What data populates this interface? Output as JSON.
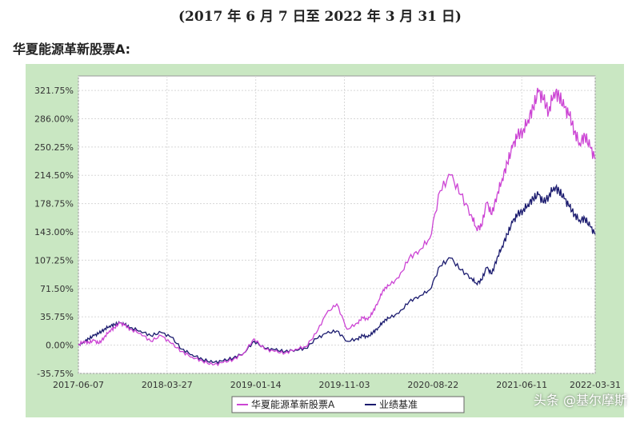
{
  "header": {
    "period": "(2017 年 6 月 7 日至 2022 年 3 月 31 日)",
    "fund_label": "华夏能源革新股票A:"
  },
  "watermark": "头条 @基尔摩斯",
  "chart_data": {
    "type": "line",
    "ylim": [
      -35.75,
      340
    ],
    "yticks": [
      "321.75%",
      "286.00%",
      "250.25%",
      "214.50%",
      "178.75%",
      "143.00%",
      "107.25%",
      "71.50%",
      "35.75%",
      "0.00%",
      "-35.75%"
    ],
    "ytick_values": [
      321.75,
      286.0,
      250.25,
      214.5,
      178.75,
      143.0,
      107.25,
      71.5,
      35.75,
      0.0,
      -35.75
    ],
    "xticks": [
      "2017-06-07",
      "2018-03-27",
      "2019-01-14",
      "2019-11-03",
      "2020-08-22",
      "2021-06-11",
      "2022-03-31"
    ],
    "xtick_positions": [
      0,
      0.1715,
      0.3432,
      0.5147,
      0.6863,
      0.8579,
      1.0
    ],
    "grid": true,
    "legend": "bottom-center",
    "series": [
      {
        "name": "华夏能源革新股票A",
        "color": "#cc44d4",
        "x": [
          0,
          0.01,
          0.02,
          0.03,
          0.04,
          0.05,
          0.06,
          0.07,
          0.08,
          0.09,
          0.1,
          0.12,
          0.14,
          0.16,
          0.18,
          0.2,
          0.22,
          0.24,
          0.26,
          0.28,
          0.3,
          0.32,
          0.34,
          0.36,
          0.38,
          0.4,
          0.42,
          0.44,
          0.46,
          0.48,
          0.5,
          0.52,
          0.54,
          0.55,
          0.56,
          0.57,
          0.58,
          0.59,
          0.6,
          0.62,
          0.64,
          0.66,
          0.68,
          0.7,
          0.72,
          0.74,
          0.76,
          0.77,
          0.78,
          0.79,
          0.8,
          0.81,
          0.82,
          0.83,
          0.84,
          0.85,
          0.86,
          0.87,
          0.88,
          0.89,
          0.9,
          0.91,
          0.92,
          0.93,
          0.94,
          0.95,
          0.96,
          0.97,
          0.98,
          0.99,
          1.0
        ],
        "values": [
          0,
          5,
          3,
          6,
          2,
          10,
          18,
          22,
          28,
          25,
          20,
          15,
          5,
          12,
          2,
          -8,
          -15,
          -20,
          -25,
          -22,
          -18,
          -10,
          8,
          -5,
          -8,
          -10,
          -5,
          -2,
          15,
          40,
          52,
          20,
          28,
          35,
          32,
          42,
          55,
          70,
          75,
          85,
          110,
          120,
          135,
          195,
          215,
          190,
          165,
          148,
          150,
          180,
          165,
          190,
          210,
          230,
          250,
          265,
          270,
          285,
          300,
          320,
          310,
          295,
          320,
          315,
          300,
          290,
          270,
          255,
          265,
          250,
          235
        ]
      },
      {
        "name": "业绩基准",
        "color": "#1a1a6e",
        "x": [
          0,
          0.01,
          0.02,
          0.03,
          0.04,
          0.05,
          0.06,
          0.07,
          0.08,
          0.09,
          0.1,
          0.12,
          0.14,
          0.16,
          0.18,
          0.2,
          0.22,
          0.24,
          0.26,
          0.28,
          0.3,
          0.32,
          0.34,
          0.36,
          0.38,
          0.4,
          0.42,
          0.44,
          0.46,
          0.48,
          0.5,
          0.52,
          0.54,
          0.55,
          0.56,
          0.57,
          0.58,
          0.59,
          0.6,
          0.62,
          0.64,
          0.66,
          0.68,
          0.7,
          0.72,
          0.74,
          0.76,
          0.77,
          0.78,
          0.79,
          0.8,
          0.81,
          0.82,
          0.83,
          0.84,
          0.85,
          0.86,
          0.87,
          0.88,
          0.89,
          0.9,
          0.91,
          0.92,
          0.93,
          0.94,
          0.95,
          0.96,
          0.97,
          0.98,
          0.99,
          1.0
        ],
        "values": [
          0,
          4,
          8,
          12,
          15,
          20,
          24,
          26,
          28,
          26,
          22,
          18,
          12,
          16,
          10,
          -5,
          -12,
          -18,
          -22,
          -20,
          -16,
          -10,
          5,
          -4,
          -6,
          -8,
          -6,
          -4,
          8,
          15,
          18,
          5,
          8,
          12,
          10,
          16,
          22,
          30,
          34,
          40,
          55,
          62,
          70,
          100,
          110,
          95,
          85,
          78,
          82,
          98,
          90,
          110,
          125,
          140,
          155,
          165,
          170,
          178,
          185,
          190,
          180,
          188,
          200,
          195,
          185,
          175,
          165,
          158,
          160,
          150,
          140
        ]
      }
    ]
  }
}
